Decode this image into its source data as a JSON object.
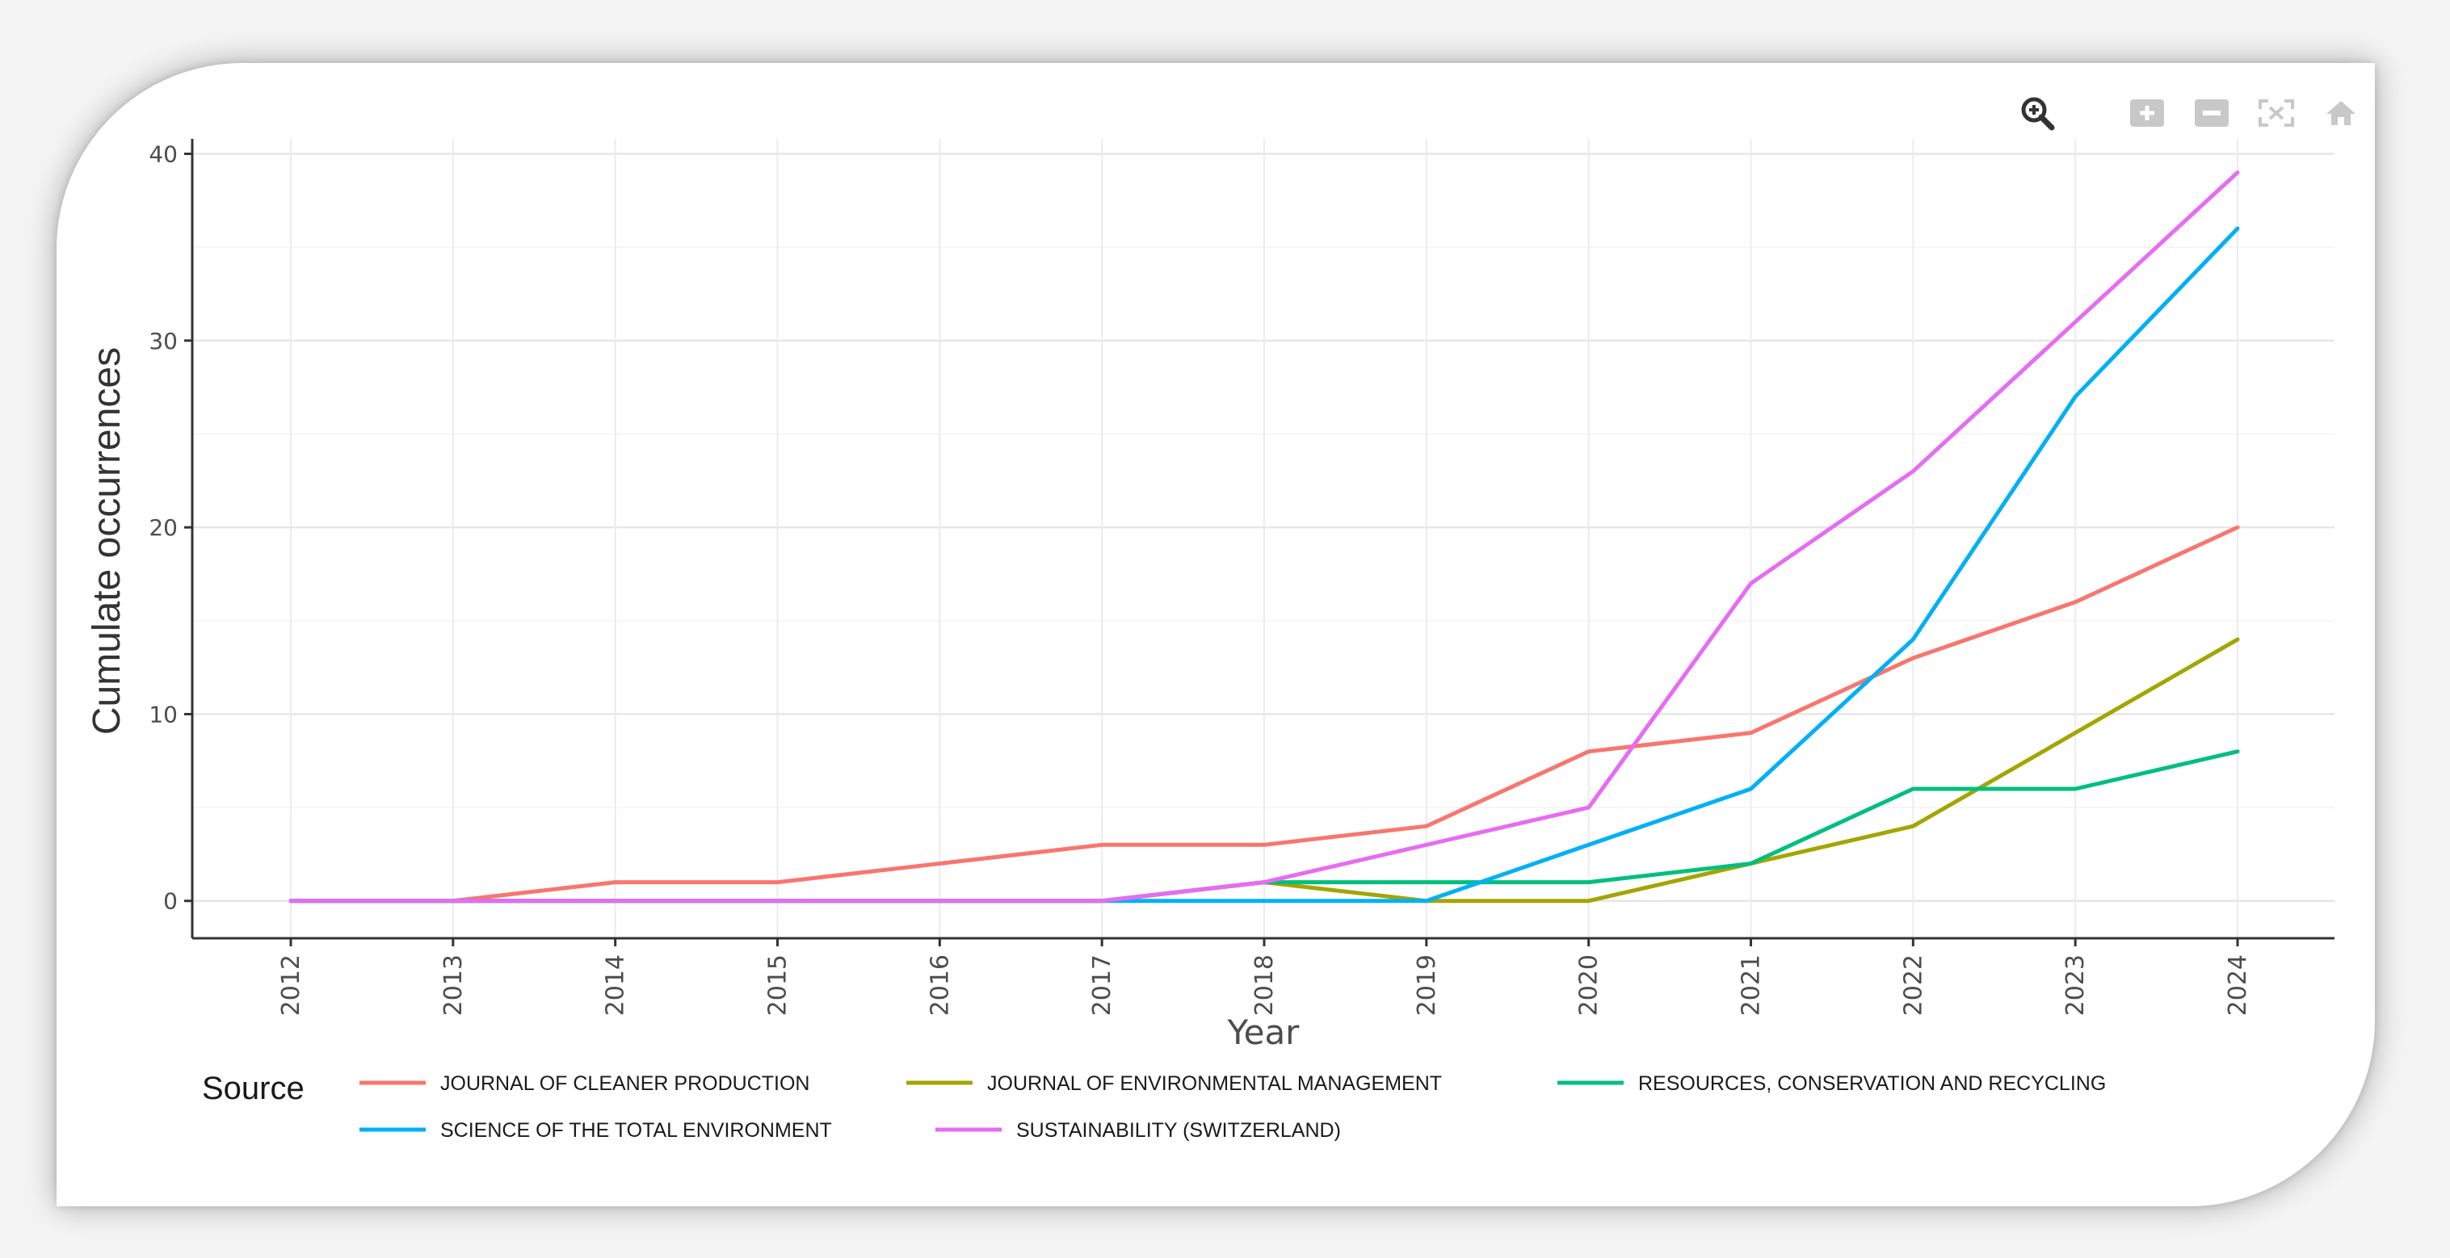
{
  "toolbar": {
    "buttons": [
      {
        "icon": "zoom-icon"
      },
      {
        "icon": "zoom-in-icon"
      },
      {
        "icon": "zoom-out-icon"
      },
      {
        "icon": "autoscale-icon"
      },
      {
        "icon": "reset-home-icon"
      }
    ]
  },
  "chart_data": {
    "type": "line",
    "title": "",
    "xlabel": "Year",
    "ylabel": "Cumulate occurrences",
    "x": [
      2012,
      2013,
      2014,
      2015,
      2016,
      2017,
      2018,
      2019,
      2020,
      2021,
      2022,
      2023,
      2024
    ],
    "x_tick_labels": [
      "2012",
      "2013",
      "2014",
      "2015",
      "2016",
      "2017",
      "2018",
      "2019",
      "2020",
      "2021",
      "2022",
      "2023",
      "2024"
    ],
    "y_ticks": [
      0,
      10,
      20,
      30,
      40
    ],
    "y_tick_labels": [
      "0",
      "10",
      "20",
      "30",
      "40"
    ],
    "ylim": [
      -2,
      40.8
    ],
    "grid": true,
    "legend_title": "Source",
    "legend_position": "bottom",
    "series": [
      {
        "name": "JOURNAL OF CLEANER PRODUCTION",
        "color": "#F8766D",
        "values": [
          0,
          0,
          1,
          1,
          2,
          3,
          3,
          4,
          8,
          9,
          13,
          16,
          20
        ]
      },
      {
        "name": "JOURNAL OF ENVIRONMENTAL MANAGEMENT",
        "color": "#A3A500",
        "values": [
          0,
          0,
          0,
          0,
          0,
          0,
          1,
          0,
          0,
          2,
          4,
          9,
          14
        ]
      },
      {
        "name": "RESOURCES, CONSERVATION AND RECYCLING",
        "color": "#00BF7D",
        "values": [
          0,
          0,
          0,
          0,
          0,
          0,
          1,
          1,
          1,
          2,
          6,
          6,
          8
        ]
      },
      {
        "name": "SCIENCE OF THE TOTAL ENVIRONMENT",
        "color": "#00B0F6",
        "values": [
          0,
          0,
          0,
          0,
          0,
          0,
          0,
          0,
          3,
          6,
          14,
          27,
          36
        ]
      },
      {
        "name": "SUSTAINABILITY (SWITZERLAND)",
        "color": "#E76BF3",
        "values": [
          0,
          0,
          0,
          0,
          0,
          0,
          1,
          3,
          5,
          17,
          23,
          31,
          39
        ]
      }
    ]
  }
}
